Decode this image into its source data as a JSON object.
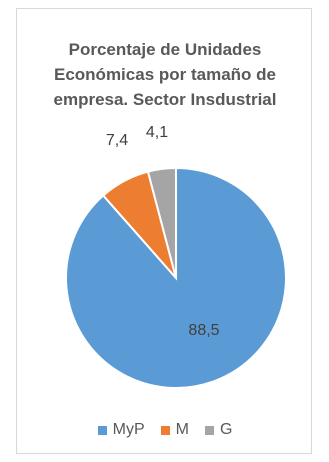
{
  "chart_data": {
    "type": "pie",
    "title_lines": [
      "Porcentaje de Unidades",
      "Económicas por tamaño de",
      "empresa. Sector Insdustrial"
    ],
    "categories": [
      "MyP",
      "M",
      "G"
    ],
    "values": [
      88.5,
      7.4,
      4.1
    ],
    "labels": [
      "88,5",
      "7,4",
      "4,1"
    ],
    "colors": [
      "#5b9bd5",
      "#ed7d31",
      "#a5a5a5"
    ],
    "start_angle_deg": 0,
    "direction": "clockwise",
    "legend_position": "bottom"
  }
}
